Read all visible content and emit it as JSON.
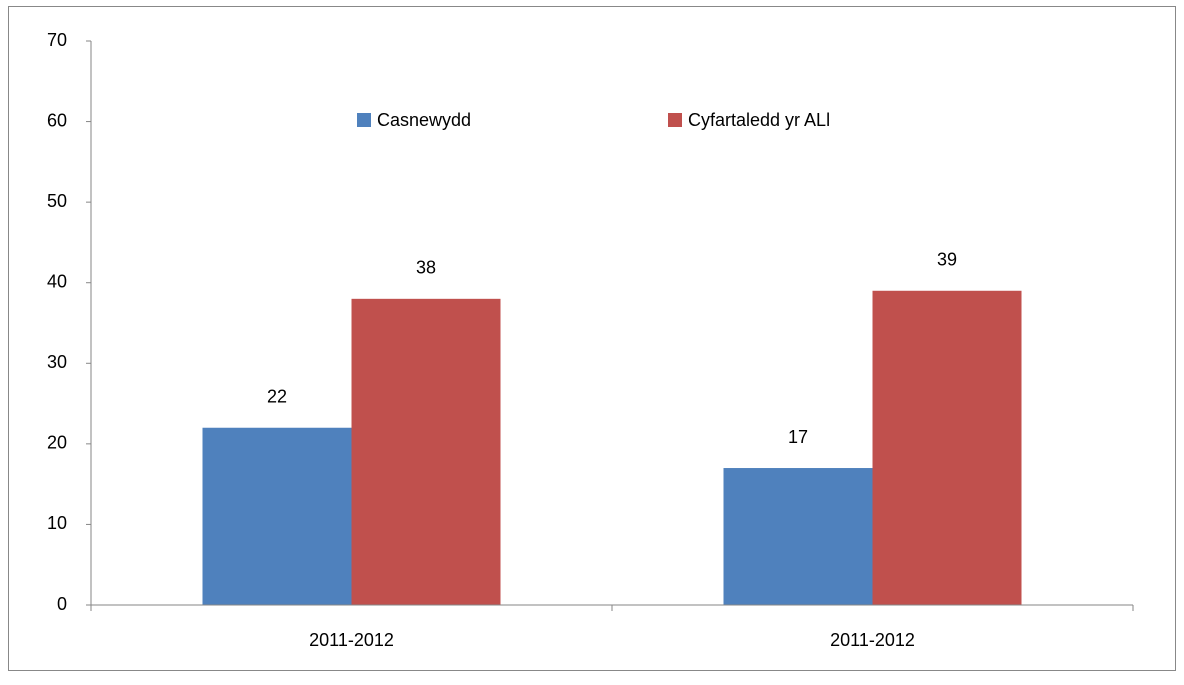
{
  "chart_data": {
    "type": "bar",
    "categories": [
      "2011-2012",
      "2011-2012"
    ],
    "series": [
      {
        "name": "Casnewydd",
        "color": "#4f81bd",
        "values": [
          22,
          17
        ]
      },
      {
        "name": "Cyfartaledd yr ALl",
        "color": "#c0504d",
        "values": [
          38,
          39
        ]
      }
    ],
    "ylim": [
      0,
      70
    ],
    "yticks": [
      0,
      10,
      20,
      30,
      40,
      50,
      60,
      70
    ],
    "grid": false,
    "legend": "top"
  }
}
